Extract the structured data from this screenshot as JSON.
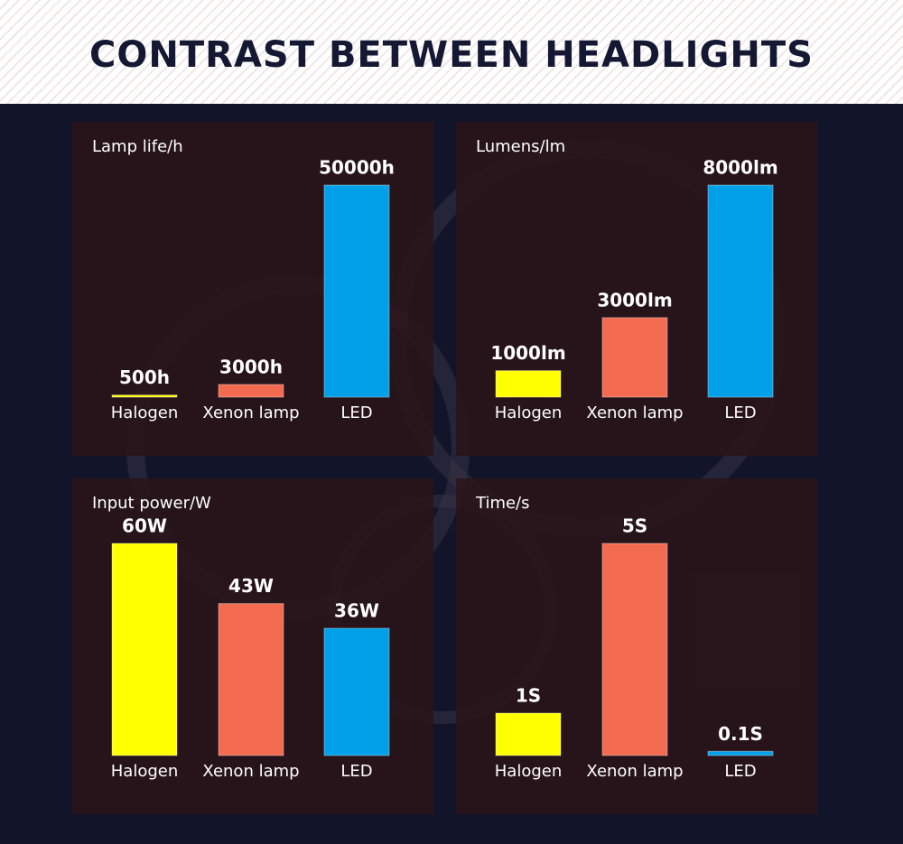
{
  "title": "CONTRAST BETWEEN HEADLIGHTS",
  "chart_data": [
    {
      "type": "bar",
      "title": "Lamp life/h",
      "categories": [
        "Halogen",
        "Xenon lamp",
        "LED"
      ],
      "values": [
        500,
        3000,
        50000
      ],
      "value_labels": [
        "500h",
        "3000h",
        "50000h"
      ],
      "colors": [
        "#ffff00",
        "#f26b50",
        "#00a0e9"
      ]
    },
    {
      "type": "bar",
      "title": "Lumens/lm",
      "categories": [
        "Halogen",
        "Xenon lamp",
        "LED"
      ],
      "values": [
        1000,
        3000,
        8000
      ],
      "value_labels": [
        "1000lm",
        "3000lm",
        "8000lm"
      ],
      "colors": [
        "#ffff00",
        "#f26b50",
        "#00a0e9"
      ]
    },
    {
      "type": "bar",
      "title": "Input power/W",
      "categories": [
        "Halogen",
        "Xenon lamp",
        "LED"
      ],
      "values": [
        60,
        43,
        36
      ],
      "value_labels": [
        "60W",
        "43W",
        "36W"
      ],
      "colors": [
        "#ffff00",
        "#f26b50",
        "#00a0e9"
      ]
    },
    {
      "type": "bar",
      "title": "Time/s",
      "categories": [
        "Halogen",
        "Xenon lamp",
        "LED"
      ],
      "values": [
        1,
        5,
        0.1
      ],
      "value_labels": [
        "1S",
        "5S",
        "0.1S"
      ],
      "colors": [
        "#ffff00",
        "#f26b50",
        "#00a0e9"
      ]
    }
  ]
}
